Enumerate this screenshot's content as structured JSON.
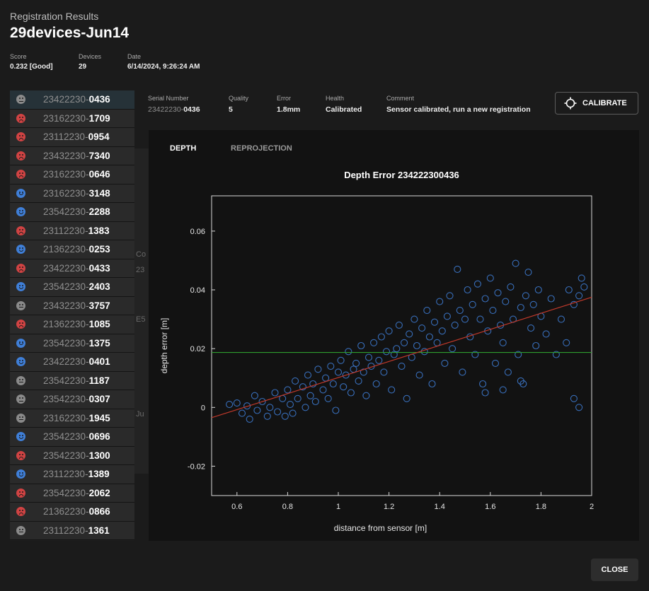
{
  "header": {
    "subtitle": "Registration Results",
    "title": "29devices-Jun14"
  },
  "meta": [
    {
      "label": "Score",
      "value": "0.232 [Good]"
    },
    {
      "label": "Devices",
      "value": "29"
    },
    {
      "label": "Date",
      "value": "6/14/2024, 9:26:24 AM"
    }
  ],
  "background_ghost": [
    "Co",
    "23",
    "E5",
    "Ju"
  ],
  "devices": [
    {
      "prefix": "23422230-",
      "suffix": "0436",
      "status": "neutral",
      "selected": true
    },
    {
      "prefix": "23162230-",
      "suffix": "1709",
      "status": "bad"
    },
    {
      "prefix": "23112230-",
      "suffix": "0954",
      "status": "bad"
    },
    {
      "prefix": "23432230-",
      "suffix": "7340",
      "status": "bad"
    },
    {
      "prefix": "23162230-",
      "suffix": "0646",
      "status": "bad"
    },
    {
      "prefix": "23162230-",
      "suffix": "3148",
      "status": "good"
    },
    {
      "prefix": "23542230-",
      "suffix": "2288",
      "status": "good"
    },
    {
      "prefix": "23112230-",
      "suffix": "1383",
      "status": "bad"
    },
    {
      "prefix": "21362230-",
      "suffix": "0253",
      "status": "good"
    },
    {
      "prefix": "23422230-",
      "suffix": "0433",
      "status": "bad"
    },
    {
      "prefix": "23542230-",
      "suffix": "2403",
      "status": "good"
    },
    {
      "prefix": "23432230-",
      "suffix": "3757",
      "status": "neutral"
    },
    {
      "prefix": "21362230-",
      "suffix": "1085",
      "status": "bad"
    },
    {
      "prefix": "23542230-",
      "suffix": "1375",
      "status": "good"
    },
    {
      "prefix": "23422230-",
      "suffix": "0401",
      "status": "good"
    },
    {
      "prefix": "23542230-",
      "suffix": "1187",
      "status": "neutral"
    },
    {
      "prefix": "23542230-",
      "suffix": "0307",
      "status": "neutral"
    },
    {
      "prefix": "23162230-",
      "suffix": "1945",
      "status": "neutral"
    },
    {
      "prefix": "23542230-",
      "suffix": "0696",
      "status": "good"
    },
    {
      "prefix": "23542230-",
      "suffix": "1300",
      "status": "bad"
    },
    {
      "prefix": "23112230-",
      "suffix": "1389",
      "status": "good"
    },
    {
      "prefix": "23542230-",
      "suffix": "2062",
      "status": "bad"
    },
    {
      "prefix": "21362230-",
      "suffix": "0866",
      "status": "bad"
    },
    {
      "prefix": "23112230-",
      "suffix": "1361",
      "status": "neutral"
    }
  ],
  "detail": {
    "serial_label": "Serial Number",
    "serial_prefix": "23422230-",
    "serial_suffix": "0436",
    "quality_label": "Quality",
    "quality": "5",
    "error_label": "Error",
    "error": "1.8mm",
    "health_label": "Health",
    "health": "Calibrated",
    "comment_label": "Comment",
    "comment": "Sensor calibrated, run a new registration"
  },
  "calibrate_label": "CALIBRATE",
  "tabs": [
    "DEPTH",
    "REPROJECTION"
  ],
  "close_label": "CLOSE",
  "colors": {
    "good": "#3f7fd8",
    "bad": "#d04343",
    "neutral": "#8a8a8a",
    "points": "#3f7fd8",
    "fit_line": "#c0392b",
    "ref_line": "#2e9d2e"
  },
  "chart_data": {
    "type": "scatter",
    "title": "Depth Error 234222300436",
    "xlabel": "distance from sensor [m]",
    "ylabel": "depth error [m]",
    "xlim": [
      0.5,
      2.0
    ],
    "ylim": [
      -0.03,
      0.072
    ],
    "xticks": [
      0.6,
      0.8,
      1,
      1.2,
      1.4,
      1.6,
      1.8,
      2
    ],
    "yticks": [
      -0.02,
      0,
      0.02,
      0.04,
      0.06
    ],
    "xtick_labels": [
      "0.6",
      "0.8",
      "1",
      "1.2",
      "1.4",
      "1.6",
      "1.8",
      "2"
    ],
    "ytick_labels": [
      "-0.02",
      "0",
      "0.02",
      "0.04",
      "0.06"
    ],
    "reference_line_y": 0.0187,
    "fit_line": [
      [
        0.5,
        -0.0035
      ],
      [
        2.0,
        0.0375
      ]
    ],
    "series": [
      {
        "name": "samples",
        "points": [
          [
            0.57,
            0.001
          ],
          [
            0.6,
            0.0015
          ],
          [
            0.62,
            -0.002
          ],
          [
            0.64,
            0.0005
          ],
          [
            0.65,
            -0.004
          ],
          [
            0.67,
            0.004
          ],
          [
            0.68,
            -0.001
          ],
          [
            0.7,
            0.002
          ],
          [
            0.72,
            -0.003
          ],
          [
            0.73,
            0.0
          ],
          [
            0.75,
            0.005
          ],
          [
            0.76,
            -0.0015
          ],
          [
            0.78,
            0.003
          ],
          [
            0.79,
            -0.003
          ],
          [
            0.8,
            0.006
          ],
          [
            0.81,
            0.001
          ],
          [
            0.82,
            -0.002
          ],
          [
            0.83,
            0.009
          ],
          [
            0.84,
            0.003
          ],
          [
            0.86,
            0.007
          ],
          [
            0.87,
            0.0
          ],
          [
            0.88,
            0.011
          ],
          [
            0.89,
            0.004
          ],
          [
            0.9,
            0.008
          ],
          [
            0.91,
            0.002
          ],
          [
            0.92,
            0.013
          ],
          [
            0.94,
            0.006
          ],
          [
            0.95,
            0.01
          ],
          [
            0.96,
            0.003
          ],
          [
            0.97,
            0.014
          ],
          [
            0.98,
            0.008
          ],
          [
            0.99,
            -0.001
          ],
          [
            1.0,
            0.012
          ],
          [
            1.01,
            0.016
          ],
          [
            1.02,
            0.007
          ],
          [
            1.03,
            0.011
          ],
          [
            1.04,
            0.019
          ],
          [
            1.05,
            0.005
          ],
          [
            1.06,
            0.013
          ],
          [
            1.07,
            0.015
          ],
          [
            1.08,
            0.009
          ],
          [
            1.09,
            0.021
          ],
          [
            1.1,
            0.012
          ],
          [
            1.11,
            0.004
          ],
          [
            1.12,
            0.017
          ],
          [
            1.13,
            0.014
          ],
          [
            1.14,
            0.022
          ],
          [
            1.15,
            0.008
          ],
          [
            1.16,
            0.016
          ],
          [
            1.17,
            0.024
          ],
          [
            1.18,
            0.012
          ],
          [
            1.19,
            0.019
          ],
          [
            1.2,
            0.026
          ],
          [
            1.21,
            0.006
          ],
          [
            1.22,
            0.018
          ],
          [
            1.23,
            0.02
          ],
          [
            1.24,
            0.028
          ],
          [
            1.25,
            0.014
          ],
          [
            1.26,
            0.022
          ],
          [
            1.27,
            0.003
          ],
          [
            1.28,
            0.025
          ],
          [
            1.29,
            0.017
          ],
          [
            1.3,
            0.03
          ],
          [
            1.31,
            0.021
          ],
          [
            1.32,
            0.011
          ],
          [
            1.33,
            0.027
          ],
          [
            1.34,
            0.019
          ],
          [
            1.35,
            0.033
          ],
          [
            1.36,
            0.024
          ],
          [
            1.37,
            0.008
          ],
          [
            1.38,
            0.029
          ],
          [
            1.39,
            0.022
          ],
          [
            1.4,
            0.036
          ],
          [
            1.41,
            0.026
          ],
          [
            1.42,
            0.015
          ],
          [
            1.43,
            0.031
          ],
          [
            1.44,
            0.038
          ],
          [
            1.45,
            0.02
          ],
          [
            1.46,
            0.028
          ],
          [
            1.47,
            0.047
          ],
          [
            1.48,
            0.033
          ],
          [
            1.49,
            0.012
          ],
          [
            1.5,
            0.03
          ],
          [
            1.51,
            0.04
          ],
          [
            1.52,
            0.024
          ],
          [
            1.53,
            0.035
          ],
          [
            1.54,
            0.018
          ],
          [
            1.55,
            0.042
          ],
          [
            1.56,
            0.03
          ],
          [
            1.57,
            0.008
          ],
          [
            1.58,
            0.037
          ],
          [
            1.59,
            0.026
          ],
          [
            1.6,
            0.044
          ],
          [
            1.61,
            0.033
          ],
          [
            1.62,
            0.015
          ],
          [
            1.63,
            0.039
          ],
          [
            1.64,
            0.028
          ],
          [
            1.65,
            0.022
          ],
          [
            1.66,
            0.036
          ],
          [
            1.67,
            0.012
          ],
          [
            1.68,
            0.041
          ],
          [
            1.69,
            0.03
          ],
          [
            1.7,
            0.049
          ],
          [
            1.71,
            0.018
          ],
          [
            1.72,
            0.034
          ],
          [
            1.73,
            0.008
          ],
          [
            1.74,
            0.038
          ],
          [
            1.75,
            0.046
          ],
          [
            1.76,
            0.027
          ],
          [
            1.77,
            0.035
          ],
          [
            1.78,
            0.021
          ],
          [
            1.79,
            0.04
          ],
          [
            1.8,
            0.031
          ],
          [
            1.82,
            0.025
          ],
          [
            1.84,
            0.037
          ],
          [
            1.86,
            0.018
          ],
          [
            1.88,
            0.03
          ],
          [
            1.9,
            0.022
          ],
          [
            1.91,
            0.04
          ],
          [
            1.93,
            0.035
          ],
          [
            1.95,
            0.038
          ],
          [
            1.96,
            0.044
          ],
          [
            1.97,
            0.041
          ],
          [
            1.93,
            0.003
          ],
          [
            1.95,
            0.0
          ],
          [
            1.72,
            0.009
          ],
          [
            1.65,
            0.006
          ],
          [
            1.58,
            0.005
          ]
        ]
      }
    ]
  }
}
